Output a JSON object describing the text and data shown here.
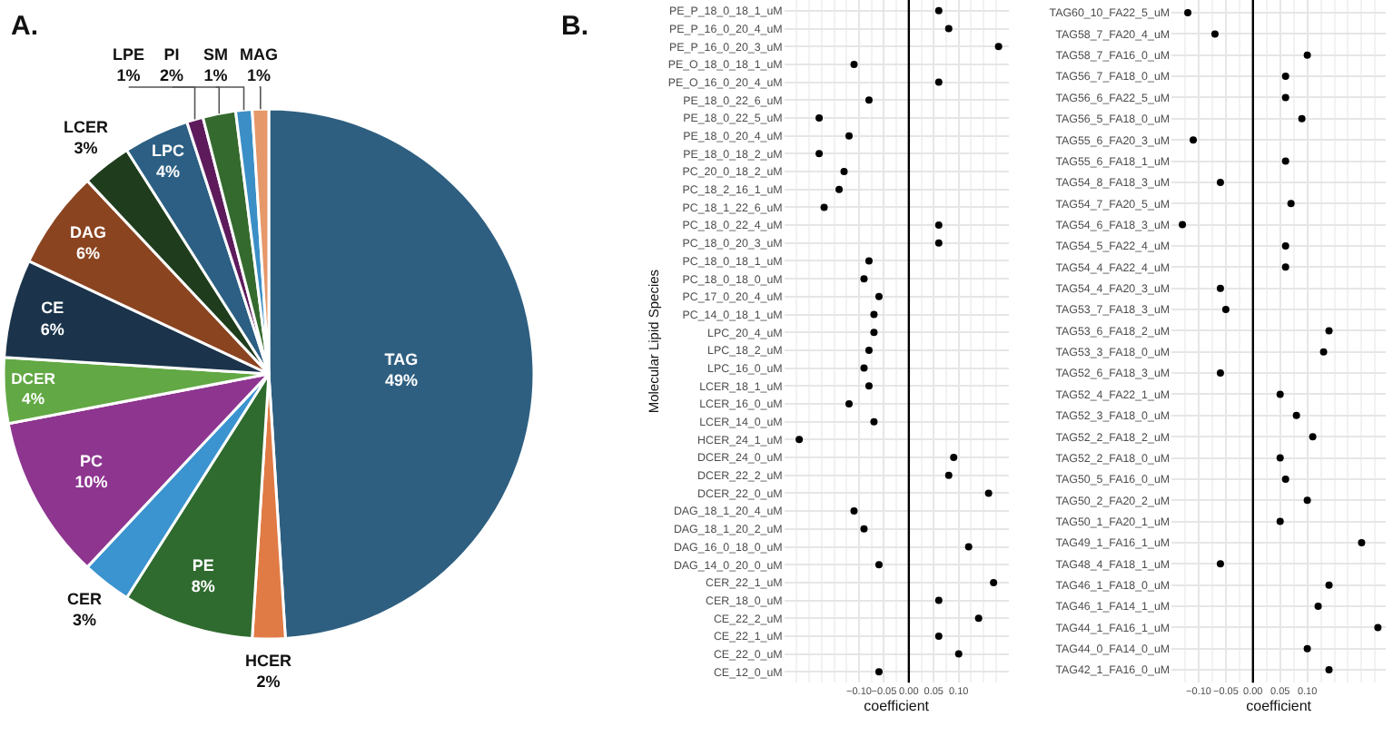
{
  "chart_data": [
    {
      "type": "pie",
      "annotations": [
        "A."
      ],
      "categories": [
        "TAG",
        "HCER",
        "PE",
        "CER",
        "PC",
        "DCER",
        "CE",
        "DAG",
        "LCER",
        "LPC",
        "LPE",
        "PI",
        "SM",
        "MAG"
      ],
      "values": [
        49,
        2,
        8,
        3,
        10,
        4,
        6,
        6,
        3,
        4,
        1,
        2,
        1,
        1
      ],
      "value_labels": [
        "49%",
        "2%",
        "8%",
        "3%",
        "10%",
        "4%",
        "6%",
        "6%",
        "3%",
        "4%",
        "1%",
        "2%",
        "1%",
        "1%"
      ],
      "colors": [
        "#2e5f80",
        "#e07b45",
        "#2f6b2f",
        "#3b94cf",
        "#8e3590",
        "#62a844",
        "#1b344b",
        "#8b4420",
        "#1f3d1d",
        "#2c5f83",
        "#5e1b5c",
        "#356a2e",
        "#3b8fc6",
        "#e5986a"
      ]
    },
    {
      "type": "scatter",
      "orientation": "horizontal",
      "annotations": [
        "B."
      ],
      "xlabel": "coefficient",
      "ylabel": "Molecular Lipid Species",
      "categories": [
        "PE_P_18_0_18_1_uM",
        "PE_P_16_0_20_4_uM",
        "PE_P_16_0_20_3_uM",
        "PE_O_18_0_18_1_uM",
        "PE_O_16_0_20_4_uM",
        "PE_18_0_22_6_uM",
        "PE_18_0_22_5_uM",
        "PE_18_0_20_4_uM",
        "PE_18_0_18_2_uM",
        "PC_20_0_18_2_uM",
        "PC_18_2_16_1_uM",
        "PC_18_1_22_6_uM",
        "PC_18_0_22_4_uM",
        "PC_18_0_20_3_uM",
        "PC_18_0_18_1_uM",
        "PC_18_0_18_0_uM",
        "PC_17_0_20_4_uM",
        "PC_14_0_18_1_uM",
        "LPC_20_4_uM",
        "LPC_18_2_uM",
        "LPC_16_0_uM",
        "LCER_18_1_uM",
        "LCER_16_0_uM",
        "LCER_14_0_uM",
        "HCER_24_1_uM",
        "DCER_24_0_uM",
        "DCER_22_2_uM",
        "DCER_22_0_uM",
        "DAG_18_1_20_4_uM",
        "DAG_18_1_20_2_uM",
        "DAG_16_0_18_0_uM",
        "DAG_14_0_20_0_uM",
        "CER_22_1_uM",
        "CER_18_0_uM",
        "CE_22_2_uM",
        "CE_22_1_uM",
        "CE_22_0_uM",
        "CE_12_0_uM"
      ],
      "series": [
        {
          "color": "#000000",
          "values": [
            0.06,
            0.08,
            0.18,
            -0.11,
            0.06,
            -0.08,
            -0.18,
            -0.12,
            -0.18,
            -0.13,
            -0.14,
            -0.17,
            0.06,
            0.06,
            -0.08,
            -0.09,
            -0.06,
            -0.07,
            -0.07,
            -0.08,
            -0.09,
            -0.08,
            -0.12,
            -0.07,
            -0.22,
            0.09,
            0.08,
            0.16,
            -0.11,
            -0.09,
            0.12,
            -0.06,
            0.17,
            0.06,
            0.14,
            0.06,
            0.1,
            -0.06
          ]
        }
      ],
      "xlim": [
        -0.25,
        0.2
      ],
      "xticks": [
        {
          "value": -0.1,
          "label": "−0.10"
        },
        {
          "value": -0.05,
          "label": "−0.05"
        },
        {
          "value": 0,
          "label": "0.00"
        },
        {
          "value": 0.05,
          "label": "0.05"
        },
        {
          "value": 0.1,
          "label": "0.10"
        }
      ],
      "ref_lines": [
        {
          "axis": "x",
          "value": 0,
          "color": "#000000"
        }
      ],
      "grid": true,
      "marker": "circle"
    },
    {
      "type": "scatter",
      "orientation": "horizontal",
      "xlabel": "coefficient",
      "categories": [
        "TAG60_10_FA22_5_uM",
        "TAG58_7_FA20_4_uM",
        "TAG58_7_FA16_0_uM",
        "TAG56_7_FA18_0_uM",
        "TAG56_6_FA22_5_uM",
        "TAG56_5_FA18_0_uM",
        "TAG55_6_FA20_3_uM",
        "TAG55_6_FA18_1_uM",
        "TAG54_8_FA18_3_uM",
        "TAG54_7_FA20_5_uM",
        "TAG54_6_FA18_3_uM",
        "TAG54_5_FA22_4_uM",
        "TAG54_4_FA22_4_uM",
        "TAG54_4_FA20_3_uM",
        "TAG53_7_FA18_3_uM",
        "TAG53_6_FA18_2_uM",
        "TAG53_3_FA18_0_uM",
        "TAG52_6_FA18_3_uM",
        "TAG52_4_FA22_1_uM",
        "TAG52_3_FA18_0_uM",
        "TAG52_2_FA18_2_uM",
        "TAG52_2_FA18_0_uM",
        "TAG50_5_FA16_0_uM",
        "TAG50_2_FA20_2_uM",
        "TAG50_1_FA20_1_uM",
        "TAG49_1_FA16_1_uM",
        "TAG48_4_FA18_1_uM",
        "TAG46_1_FA18_0_uM",
        "TAG46_1_FA14_1_uM",
        "TAG44_1_FA16_1_uM",
        "TAG44_0_FA14_0_uM",
        "TAG42_1_FA16_0_uM"
      ],
      "series": [
        {
          "color": "#000000",
          "values": [
            -0.12,
            -0.07,
            0.1,
            0.06,
            0.06,
            0.09,
            -0.11,
            0.06,
            -0.06,
            0.07,
            -0.13,
            0.06,
            0.06,
            -0.06,
            -0.05,
            0.14,
            0.13,
            -0.06,
            0.05,
            0.08,
            0.11,
            0.05,
            0.06,
            0.1,
            0.05,
            0.2,
            -0.06,
            0.14,
            0.12,
            0.23,
            0.1,
            0.14
          ]
        }
      ],
      "xlim": [
        -0.15,
        0.245
      ],
      "xticks": [
        {
          "value": -0.1,
          "label": "−0.10"
        },
        {
          "value": -0.05,
          "label": "−0.05"
        },
        {
          "value": 0,
          "label": "0.00"
        },
        {
          "value": 0.05,
          "label": "0.05"
        },
        {
          "value": 0.1,
          "label": "0.10"
        }
      ],
      "ref_lines": [
        {
          "axis": "x",
          "value": 0,
          "color": "#000000"
        }
      ],
      "grid": true,
      "marker": "circle"
    }
  ]
}
